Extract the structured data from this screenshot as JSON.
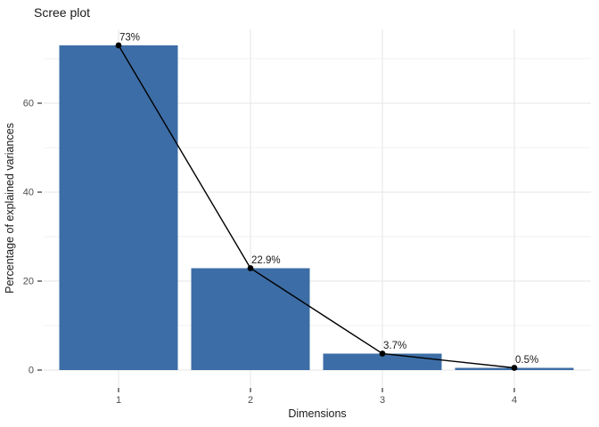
{
  "chart_data": {
    "type": "bar+line",
    "title": "Scree plot",
    "xlabel": "Dimensions",
    "ylabel": "Percentage of explained variances",
    "categories": [
      "1",
      "2",
      "3",
      "4"
    ],
    "values": [
      73,
      22.9,
      3.7,
      0.5
    ],
    "point_labels": [
      "73%",
      "22.9%",
      "3.7%",
      "0.5%"
    ],
    "yticks": [
      0,
      20,
      40,
      60
    ],
    "yticks_minor": [
      10,
      30,
      50,
      70
    ],
    "ylim": [
      0,
      76.6
    ],
    "legend": "none",
    "grid": "horizontal major+minor, vertical major at each category",
    "colors": {
      "bar_fill": "#3C6DA6",
      "line": "#000000",
      "point": "#000000",
      "grid_major": "#E4E4E4",
      "grid_minor": "#F0F0F0",
      "tick_mark": "#333333",
      "tick_text": "#4D4D4D",
      "title_text": "#1A1A1A"
    }
  }
}
